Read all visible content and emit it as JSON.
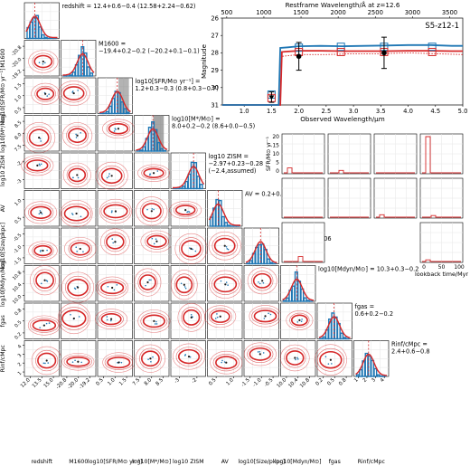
{
  "corner": {
    "axis_labels": [
      "redshift",
      "M1600",
      "log10[SFR/M⊙ yr⁻¹]",
      "log10[M*/M⊙]",
      "log10 ZISM",
      "AV",
      "log10[Size/pkpc]",
      "log10[Mdyn/M⊙]",
      "fgas",
      "Rinf/cMpc"
    ],
    "x_ticks": [
      [
        "12.0",
        "13.5",
        "15.0"
      ],
      [
        "-20.8",
        "-20.0",
        "-19.2"
      ],
      [
        "0.5",
        "1.0",
        "1.5"
      ],
      [
        "7.5",
        "8.0",
        "8.5"
      ],
      [
        "-3",
        "-2"
      ],
      [
        "0.5",
        "1.0"
      ],
      [
        "-1.5",
        "-1.0",
        "-0.5"
      ],
      [
        "10.0",
        "10.4",
        "10.8"
      ],
      [
        "0.2",
        "0.5",
        "0.8"
      ],
      [
        "1",
        "2",
        "3",
        "4"
      ]
    ],
    "y_ticks": [
      [
        "-20.8",
        "-20.0",
        "-19.2"
      ],
      [
        "1.5",
        "1.0",
        "0.5"
      ],
      [
        "8.5",
        "8.0",
        "7.5"
      ],
      [
        "-2",
        "-3"
      ],
      [
        "1.0",
        "0.5"
      ],
      [
        "-0.5",
        "-1.0",
        "-1.5"
      ],
      [
        "10.8",
        "10.4",
        "10.0"
      ],
      [
        "0.8",
        "0.5",
        "0.2"
      ],
      [
        "4",
        "3",
        "2",
        "1"
      ]
    ],
    "titles": [
      {
        "l1": "redshift = 12.4+0.6−0.4 (12.58+2.24−0.62)"
      },
      {
        "l1": "M1600 =",
        "l2": "−19.4+0.2−0.2 (−20.2+0.1−0.1)"
      },
      {
        "l1": "log10[SFR/M⊙ yr⁻¹] =",
        "l2": "1.2+0.3−0.3 (0.8+0.3−0.7)"
      },
      {
        "l1": "log10[M*/M⊙] =",
        "l2": "8.0+0.2−0.2 (8.6+0.0−0.5)"
      },
      {
        "l1": "log10 ZISM =",
        "l2": "−2.97+0.23−0.28",
        "l3": "(−2.4,assumed)"
      },
      {
        "l1": "AV = 0.2+0.4−0.1"
      },
      {
        "l1": "Size/pkpc =",
        "l2": "0.12+0.11−0.06"
      },
      {
        "l1": "log10[Mdyn/M⊙] = 10.3+0.3−0.2"
      },
      {
        "l1": "fgas =",
        "l2": "0.6+0.2−0.2"
      },
      {
        "l1": "Rinf/cMpc =",
        "l2": "2.4+0.6−0.8"
      }
    ],
    "colors": {
      "posterior": "#d62728",
      "prior": "#1f77b4",
      "shade": "#808080"
    }
  },
  "sed": {
    "label": "S5-z12-1",
    "xlabel": "Observed Wavelength/μm",
    "ylabel": "Magnitude",
    "top_label": "Restframe Wavelength/Å at z=12.6",
    "x_ticks": [
      "1.0",
      "1.5",
      "2.0",
      "2.5",
      "3.0",
      "3.5",
      "4.0",
      "4.5",
      "5.0"
    ],
    "top_ticks": [
      "500",
      "1000",
      "1500",
      "2000",
      "2500",
      "3000",
      "3500"
    ],
    "y_ticks": [
      "26",
      "27",
      "28",
      "29",
      "30",
      "31"
    ],
    "xlim": [
      0.6,
      5.0
    ],
    "ylim": [
      31,
      26
    ],
    "model_blue": [
      [
        0.6,
        31
      ],
      [
        1.63,
        31
      ],
      [
        1.66,
        27.72
      ],
      [
        1.8,
        27.68
      ],
      [
        2.0,
        27.62
      ],
      [
        2.4,
        27.6
      ],
      [
        2.8,
        27.62
      ],
      [
        3.2,
        27.6
      ],
      [
        3.6,
        27.58
      ],
      [
        4.0,
        27.55
      ],
      [
        4.4,
        27.55
      ],
      [
        4.8,
        27.6
      ],
      [
        5.0,
        27.6
      ]
    ],
    "model_red": [
      [
        0.6,
        31
      ],
      [
        1.66,
        31
      ],
      [
        1.69,
        27.95
      ],
      [
        1.8,
        27.92
      ],
      [
        2.0,
        27.88
      ],
      [
        2.4,
        27.88
      ],
      [
        2.8,
        27.9
      ],
      [
        3.2,
        27.9
      ],
      [
        3.6,
        27.9
      ],
      [
        4.0,
        27.88
      ],
      [
        4.4,
        27.88
      ],
      [
        4.8,
        27.9
      ],
      [
        5.0,
        27.9
      ]
    ],
    "model_red_dotted": [
      [
        1.7,
        28.2
      ],
      [
        2.0,
        28.1
      ],
      [
        2.5,
        28.1
      ],
      [
        3.0,
        28.05
      ],
      [
        3.5,
        28.05
      ],
      [
        4.0,
        28.0
      ],
      [
        4.5,
        28.05
      ],
      [
        5.0,
        28.1
      ]
    ],
    "phot_blue": [
      [
        1.5,
        30.4
      ],
      [
        2.0,
        27.7
      ],
      [
        2.77,
        27.65
      ],
      [
        3.56,
        27.65
      ],
      [
        4.44,
        27.65
      ]
    ],
    "phot_red": [
      [
        1.5,
        30.6
      ],
      [
        2.0,
        27.95
      ],
      [
        2.77,
        27.95
      ],
      [
        3.56,
        27.95
      ],
      [
        4.44,
        27.95
      ]
    ],
    "obs": [
      [
        1.5,
        30.55,
        0.3,
        1
      ],
      [
        2.0,
        28.2,
        0.8,
        0
      ],
      [
        3.56,
        28.0,
        0.9,
        0
      ]
    ]
  },
  "sfh": {
    "ylabel": "SFR/M⊙ yr⁻¹",
    "xlabel": "lookback time/Myr",
    "y_ticks": [
      "20",
      "15",
      "10",
      "5",
      "0"
    ],
    "x_ticks": [
      "0",
      "50",
      "100"
    ],
    "sfr_values": [
      3,
      1.5,
      0,
      0,
      0,
      0,
      0,
      22,
      0
    ]
  }
}
